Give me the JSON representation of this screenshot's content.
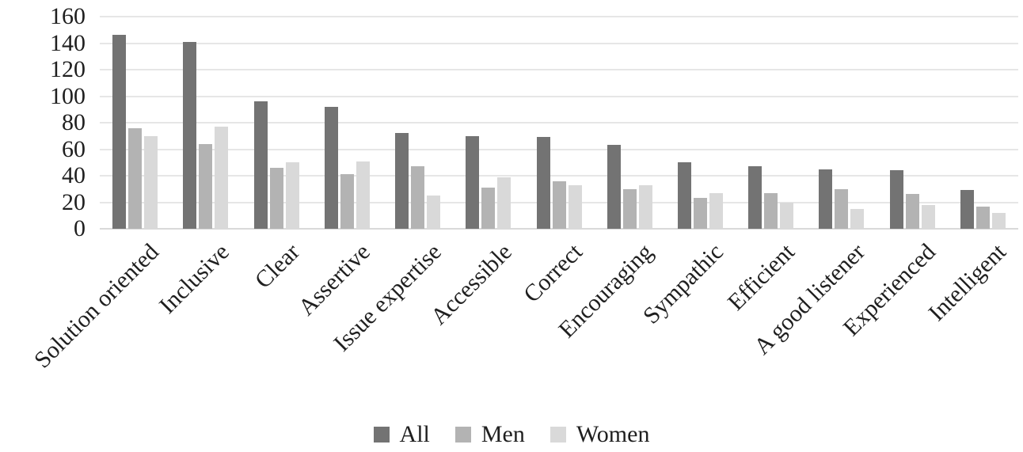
{
  "chart_data": {
    "type": "bar",
    "title": "",
    "xlabel": "",
    "ylabel": "",
    "categories": [
      "Solution oriented",
      "Inclusive",
      "Clear",
      "Assertive",
      "Issue expertise",
      "Accessible",
      "Correct",
      "Encouraging",
      "Sympathic",
      "Efficient",
      "A good listener",
      "Experienced",
      "Intelligent"
    ],
    "series": [
      {
        "name": "All",
        "color": "#737373",
        "values": [
          146,
          141,
          96,
          92,
          72,
          70,
          69,
          63,
          50,
          47,
          45,
          44,
          29
        ]
      },
      {
        "name": "Men",
        "color": "#b3b3b3",
        "values": [
          76,
          64,
          46,
          41,
          47,
          31,
          36,
          30,
          23,
          27,
          30,
          26,
          17
        ]
      },
      {
        "name": "Women",
        "color": "#d9d9d9",
        "values": [
          70,
          77,
          50,
          51,
          25,
          39,
          33,
          33,
          27,
          20,
          15,
          18,
          12
        ]
      }
    ],
    "ylim": [
      0,
      160
    ],
    "yticks": [
      0,
      20,
      40,
      60,
      80,
      100,
      120,
      140,
      160
    ],
    "grid": true,
    "gridline_color": "#e6e6e6",
    "axis_text_color": "#1f1f1f",
    "legend_position": "bottom"
  }
}
